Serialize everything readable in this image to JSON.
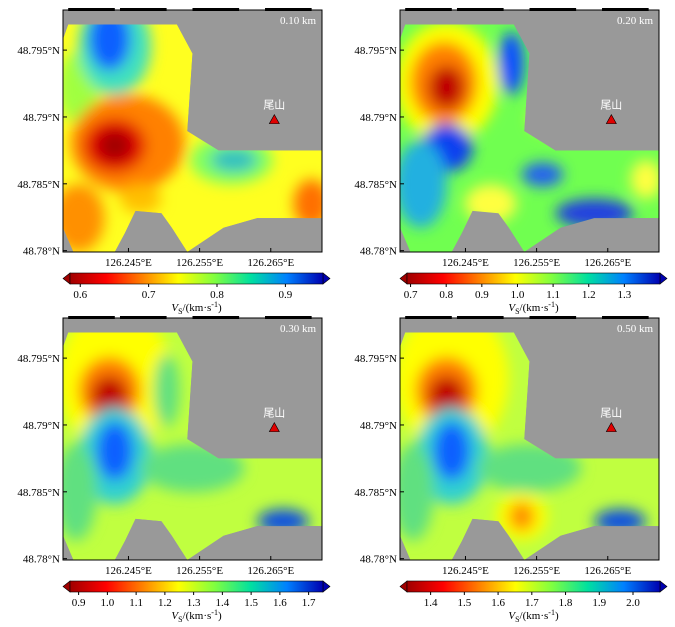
{
  "panels": [
    {
      "depth": "0.10 km",
      "colorbar": {
        "lim": [
          0.585,
          0.955
        ],
        "ticks": [
          0.6,
          0.7,
          0.8,
          0.9
        ]
      }
    },
    {
      "depth": "0.20 km",
      "colorbar": {
        "lim": [
          0.69,
          1.4
        ],
        "ticks": [
          0.7,
          0.8,
          0.9,
          {
            "value": 1.0,
            "label": "1.0"
          },
          1.1,
          1.2,
          1.3
        ]
      }
    },
    {
      "depth": "0.30 km",
      "colorbar": {
        "lim": [
          0.87,
          1.75
        ],
        "ticks": [
          0.9,
          {
            "value": 1.0,
            "label": "1.0"
          },
          1.1,
          1.2,
          1.3,
          1.4,
          1.5,
          1.6,
          1.7
        ]
      }
    },
    {
      "depth": "0.50 km",
      "colorbar": {
        "lim": [
          1.33,
          2.08
        ],
        "ticks": [
          1.4,
          1.5,
          1.6,
          1.7,
          1.8,
          1.9,
          {
            "value": 2.0,
            "label": "2.0"
          }
        ]
      }
    }
  ],
  "map": {
    "xlim": [
      126.2358,
      126.2722
    ],
    "ylim": [
      48.7799,
      48.798
    ],
    "xticks": [
      {
        "value": 126.245,
        "label": "126.245°E"
      },
      {
        "value": 126.255,
        "label": "126.255°E"
      },
      {
        "value": 126.265,
        "label": "126.265°E"
      }
    ],
    "yticks": [
      {
        "value": 48.78,
        "label": "48.78°N"
      },
      {
        "value": 48.785,
        "label": "48.785°N"
      },
      {
        "value": 48.79,
        "label": "48.79°N"
      },
      {
        "value": 48.795,
        "label": "48.795°N"
      }
    ],
    "station": {
      "name": "尾山",
      "lon": 126.2655,
      "lat": 48.7898,
      "color": "#e00000"
    }
  },
  "colorbar_label": {
    "symbol": "V",
    "subscript": "S",
    "unit": "/(km·s",
    "superscript": "-1",
    "close": ")"
  },
  "colormap": [
    "#a00000",
    "#ff0000",
    "#ff8000",
    "#ffff00",
    "#80ff40",
    "#00e0a0",
    "#0080ff",
    "#0000b0"
  ]
}
